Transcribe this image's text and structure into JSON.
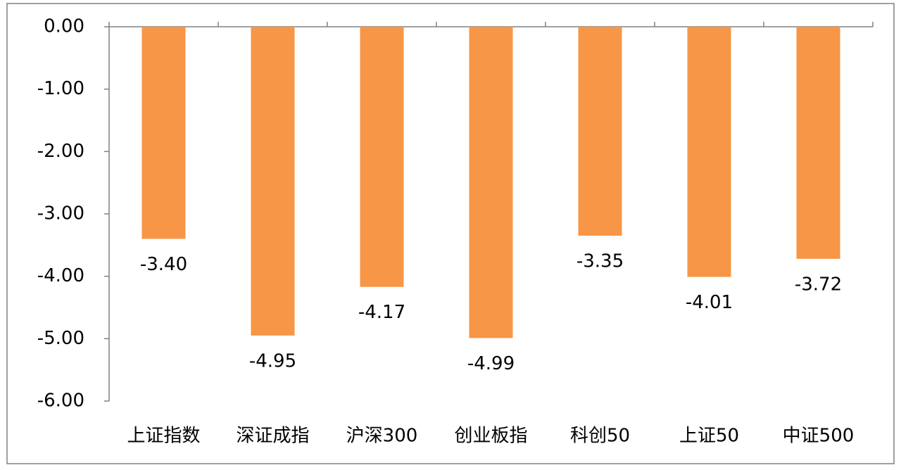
{
  "chart_data": {
    "type": "bar",
    "categories": [
      "上证指数",
      "深证成指",
      "沪深300",
      "创业板指",
      "科创50",
      "上证50",
      "中证500"
    ],
    "values": [
      -3.4,
      -4.95,
      -4.17,
      -4.99,
      -3.35,
      -4.01,
      -3.72
    ],
    "value_labels": [
      "-3.40",
      "-4.95",
      "-4.17",
      "-4.99",
      "-3.35",
      "-4.01",
      "-3.72"
    ],
    "color": "#f79646",
    "ylim": [
      -6,
      0
    ],
    "yticks": [
      {
        "value": 0,
        "label": "0.00"
      },
      {
        "value": -1,
        "label": "-1.00"
      },
      {
        "value": -2,
        "label": "-2.00"
      },
      {
        "value": -3,
        "label": "-3.00"
      },
      {
        "value": -4,
        "label": "-4.00"
      },
      {
        "value": -5,
        "label": "-5.00"
      },
      {
        "value": -6,
        "label": "-6.00"
      }
    ],
    "grid": false
  }
}
